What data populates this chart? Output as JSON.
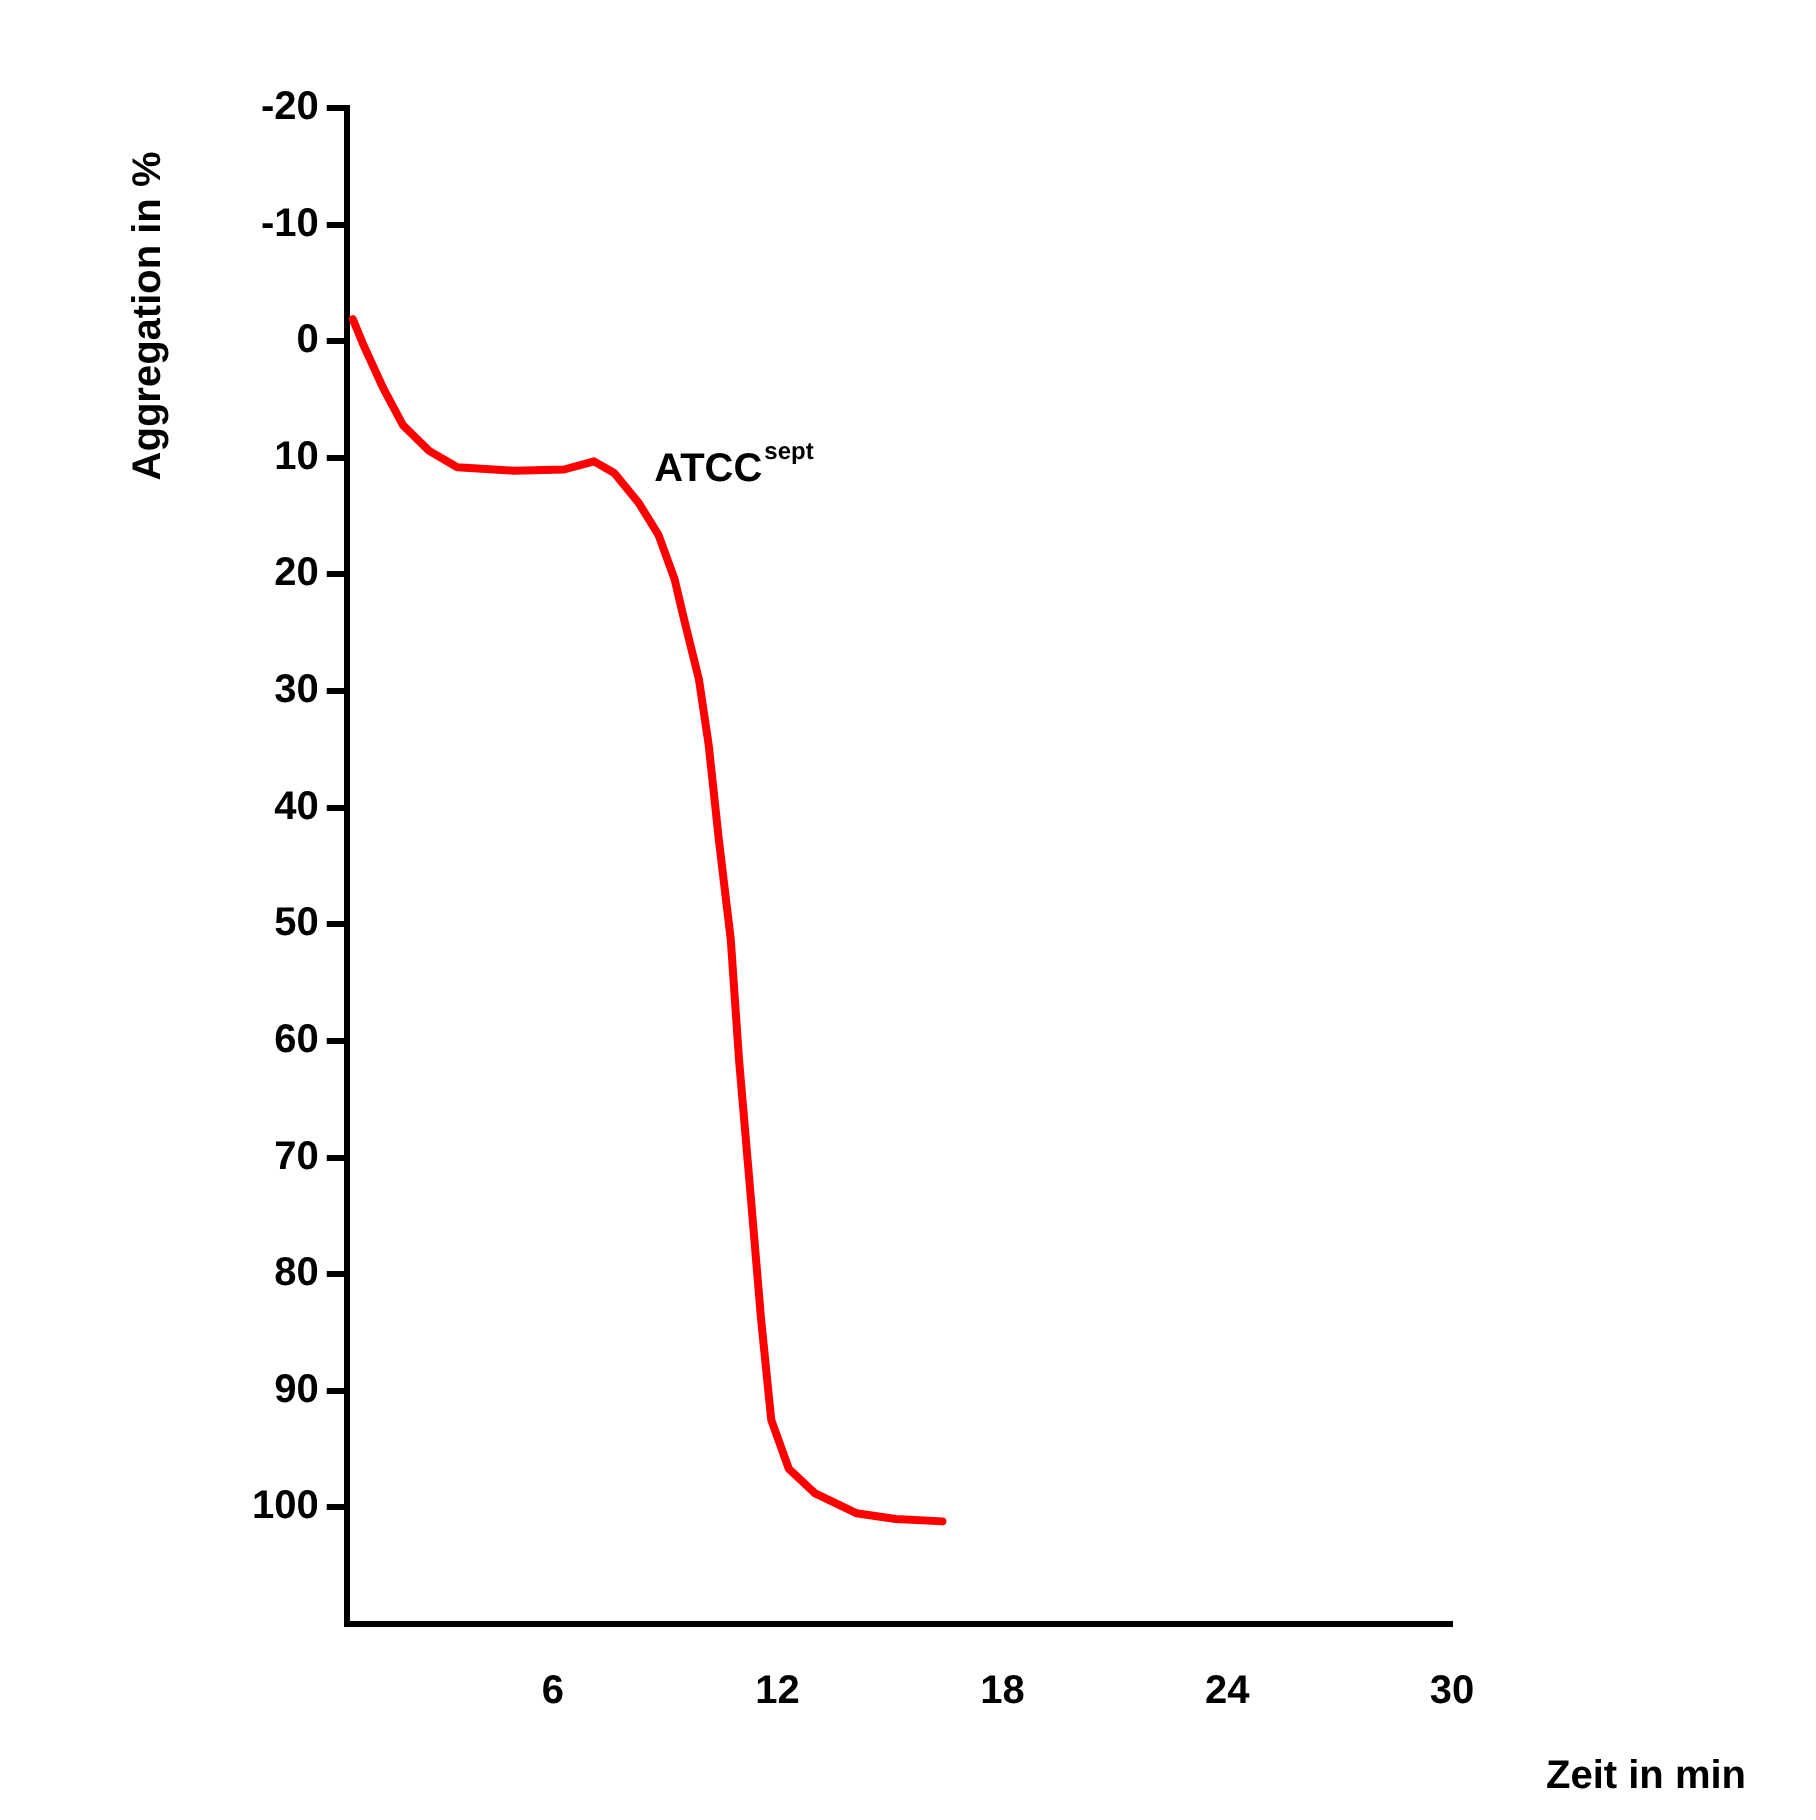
{
  "chart_data": {
    "type": "line",
    "xlabel": "Zeit in min",
    "ylabel": "Aggregation in %",
    "xlim": [
      0.5,
      30
    ],
    "xticks": [
      6,
      12,
      18,
      24,
      30
    ],
    "ylim": [
      110,
      -20
    ],
    "yticks": [
      -20,
      -10,
      0,
      10,
      20,
      30,
      40,
      50,
      60,
      70,
      80,
      90,
      100
    ],
    "grid": false,
    "legend": false,
    "marker": "none",
    "line_style": "solid",
    "series": [
      {
        "name": "ATCC$^{sept}$",
        "color": "#ff0000",
        "x": [
          0.66,
          0.93,
          1.47,
          2.0,
          2.7,
          3.45,
          4.95,
          6.3,
          7.1,
          7.64,
          8.3,
          8.82,
          9.25,
          9.5,
          9.9,
          10.16,
          10.43,
          10.75,
          10.97,
          11.29,
          11.56,
          11.83,
          12.3,
          13.0,
          14.1,
          15.15,
          16.4
        ],
        "values": [
          -1.9,
          0.2,
          4,
          7.2,
          9.4,
          10.8,
          11.1,
          11,
          10.3,
          11.3,
          13.9,
          16.6,
          20.4,
          23.8,
          29,
          34.6,
          42.7,
          51.3,
          61.6,
          73.6,
          83.9,
          92.5,
          96.7,
          98.8,
          100.5,
          101,
          101.2
        ]
      }
    ]
  }
}
